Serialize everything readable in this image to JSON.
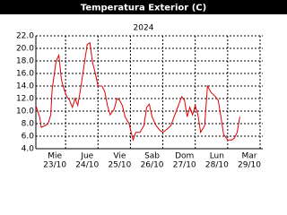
{
  "chart_data": {
    "type": "line",
    "title": "Temperatura Exterior (C)",
    "subtitle": "2024",
    "xlim": [
      0,
      168
    ],
    "ylim": [
      4,
      22
    ],
    "yticks": [
      {
        "value": 4,
        "label": "4.0"
      },
      {
        "value": 6,
        "label": "6.0"
      },
      {
        "value": 8,
        "label": "8.0"
      },
      {
        "value": 10,
        "label": "10.0"
      },
      {
        "value": 12,
        "label": "12.0"
      },
      {
        "value": 14,
        "label": "14.0"
      },
      {
        "value": 16,
        "label": "16.0"
      },
      {
        "value": 18,
        "label": "18.0"
      },
      {
        "value": 20,
        "label": "20.0"
      },
      {
        "value": 22,
        "label": "22.0"
      }
    ],
    "xticks": [
      {
        "value": 22,
        "label": [
          "Mie",
          "23/10"
        ]
      },
      {
        "value": 46,
        "label": [
          "Jue",
          "24/10"
        ]
      },
      {
        "value": 70,
        "label": [
          "Vie",
          "25/10"
        ]
      },
      {
        "value": 94,
        "label": [
          "Sab",
          "26/10"
        ]
      },
      {
        "value": 118,
        "label": [
          "Dom",
          "27/10"
        ]
      },
      {
        "value": 142,
        "label": [
          "Lun",
          "28/10"
        ]
      },
      {
        "value": 166,
        "label": [
          "Mar",
          "29/10"
        ]
      }
    ],
    "grid": true,
    "series": [
      {
        "color": "#e00000",
        "x": [
          0,
          3,
          4,
          7,
          9,
          11,
          12,
          15,
          17,
          19,
          21,
          23,
          25,
          27,
          29,
          31,
          33,
          36,
          38,
          40,
          42,
          44,
          46,
          49,
          51,
          53,
          55,
          58,
          60,
          62,
          64,
          66,
          69,
          72,
          74,
          77,
          80,
          82,
          84,
          86,
          89,
          92,
          94,
          97,
          100,
          102,
          105,
          108,
          110,
          112,
          114,
          116,
          118,
          120,
          122,
          125,
          127,
          130,
          133,
          135,
          137,
          139,
          142,
          145,
          147,
          149,
          151
        ],
        "values": [
          10.9,
          8.9,
          7.4,
          7.7,
          8.0,
          9.4,
          13.4,
          18.0,
          18.9,
          14.9,
          13.4,
          12.3,
          11.7,
          10.6,
          12.0,
          10.9,
          13.4,
          17.7,
          20.6,
          20.9,
          17.7,
          16.0,
          14.0,
          14.0,
          13.1,
          10.9,
          9.4,
          10.3,
          12.0,
          11.7,
          10.9,
          9.1,
          8.0,
          5.4,
          6.6,
          6.6,
          7.7,
          10.6,
          11.1,
          9.1,
          7.7,
          6.9,
          6.6,
          7.1,
          7.7,
          8.9,
          10.6,
          12.3,
          11.7,
          9.1,
          10.6,
          9.4,
          10.9,
          9.4,
          6.6,
          7.7,
          14.0,
          12.9,
          12.3,
          11.7,
          9.1,
          6.3,
          5.4,
          5.4,
          5.7,
          6.6,
          9.1
        ]
      }
    ]
  }
}
